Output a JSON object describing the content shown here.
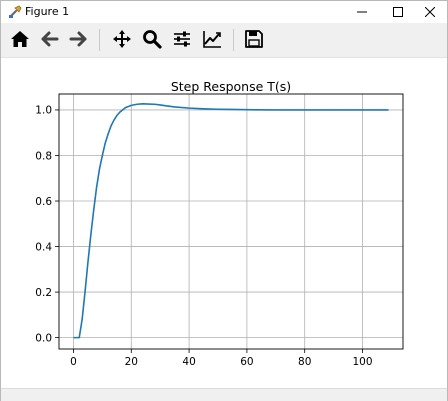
{
  "window": {
    "title": "Figure 1"
  },
  "toolbar": {
    "buttons": [
      {
        "name": "home",
        "icon": "home-icon"
      },
      {
        "name": "back",
        "icon": "arrow-left-icon"
      },
      {
        "name": "forward",
        "icon": "arrow-right-icon"
      },
      {
        "name": "pan",
        "icon": "move-icon"
      },
      {
        "name": "zoom",
        "icon": "magnifier-icon"
      },
      {
        "name": "configure-subplots",
        "icon": "sliders-icon"
      },
      {
        "name": "edit-axes",
        "icon": "line-chart-icon"
      },
      {
        "name": "save",
        "icon": "floppy-disk-icon"
      }
    ]
  },
  "colors": {
    "line": "#1f77b4",
    "grid": "#b0b0b0"
  },
  "chart_data": {
    "type": "line",
    "title": "Step Response T(s)",
    "xlabel": "",
    "ylabel": "",
    "xlim": [
      -5,
      114
    ],
    "ylim": [
      -0.05,
      1.07
    ],
    "xticks": [
      0,
      20,
      40,
      60,
      80,
      100
    ],
    "yticks": [
      0.0,
      0.2,
      0.4,
      0.6,
      0.8,
      1.0
    ],
    "xtick_labels": [
      "0",
      "20",
      "40",
      "60",
      "80",
      "100"
    ],
    "ytick_labels": [
      "0.0",
      "0.2",
      "0.4",
      "0.6",
      "0.8",
      "1.0"
    ],
    "grid": true,
    "series": [
      {
        "x": [
          0,
          1,
          2,
          3,
          4,
          5,
          6,
          7,
          8,
          9,
          10,
          11,
          12,
          13,
          14,
          15,
          16,
          18,
          20,
          22,
          24,
          26,
          28,
          30,
          32,
          35,
          40,
          45,
          50,
          55,
          60,
          70,
          80,
          90,
          100,
          109
        ],
        "y": [
          0.0,
          0.0,
          0.0,
          0.08,
          0.2,
          0.33,
          0.45,
          0.56,
          0.66,
          0.74,
          0.8,
          0.855,
          0.895,
          0.93,
          0.955,
          0.975,
          0.99,
          1.01,
          1.02,
          1.025,
          1.027,
          1.026,
          1.025,
          1.022,
          1.018,
          1.013,
          1.008,
          1.005,
          1.003,
          1.002,
          1.001,
          1.0,
          1.0,
          1.0,
          1.0,
          1.0
        ]
      }
    ]
  }
}
